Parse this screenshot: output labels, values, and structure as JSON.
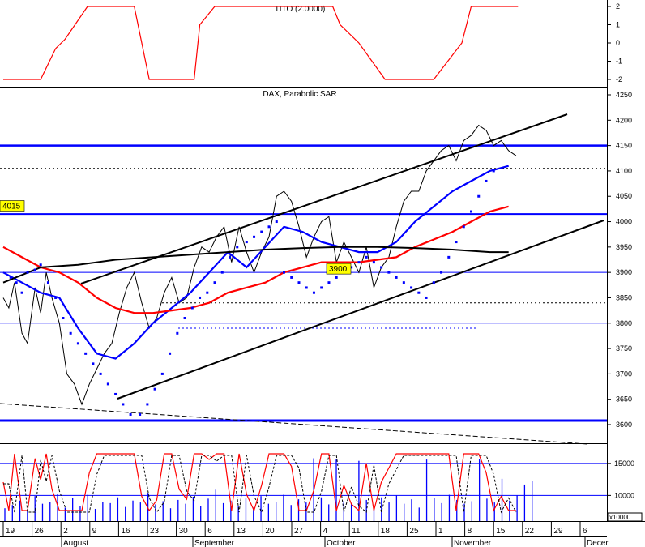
{
  "colors": {
    "background": "#ffffff",
    "frame": "#000000",
    "price": "#000000",
    "sar": "#0000ff",
    "ma_blue": "#0000ff",
    "ma_red": "#ff0000",
    "ma_long": "#000000",
    "channel": "#000000",
    "h_lines": "#0000ff",
    "tito": "#ff0000",
    "volume": "#0000ff",
    "stoch_fast": "#ff0000",
    "stoch_slow": "#000000",
    "label_bg": "#ffff00"
  },
  "chart_data": [
    {
      "type": "line",
      "panel": "indicator",
      "title": "TITO (2.0000)",
      "ylim": [
        -2.3,
        2.3
      ],
      "y_ticks": [
        "2",
        "1",
        "0",
        "-1",
        "-2"
      ],
      "series": [
        {
          "x": [
            0,
            0.8,
            2,
            2.8,
            3.3,
            4.5,
            7,
            7.8,
            10.2,
            10.5,
            11.3,
            17.6,
            18,
            19,
            20.4,
            22.1,
            23,
            24.5,
            25,
            27.5
          ],
          "values": [
            -2,
            -2,
            -2,
            -0.3,
            0.2,
            2,
            2,
            -2,
            -2,
            1,
            2,
            2,
            1,
            0,
            -2,
            -2,
            -2,
            0,
            2,
            2
          ]
        }
      ]
    },
    {
      "type": "line",
      "panel": "price",
      "title": "DAX, Parabolic SAR",
      "ylim": [
        3582,
        4255
      ],
      "y_ticks": [
        "4250",
        "4200",
        "4150",
        "4100",
        "4050",
        "4000",
        "3950",
        "3900",
        "3850",
        "3800",
        "3750",
        "3700",
        "3650",
        "3600"
      ],
      "annotations": [
        "4015",
        "3900"
      ],
      "series": [
        {
          "name": "",
          "x": [
            0,
            0.3,
            0.6,
            1,
            1.3,
            1.7,
            2,
            2.3,
            2.6,
            3,
            3.4,
            3.8,
            4.2,
            4.6,
            5,
            5.4,
            5.8,
            6.2,
            6.6,
            7,
            7.4,
            7.8,
            8.2,
            8.6,
            9,
            9.4,
            9.8,
            10.2,
            10.6,
            11,
            11.4,
            11.8,
            12.2,
            12.6,
            13,
            13.4,
            13.8,
            14.2,
            14.6,
            15,
            15.4,
            15.8,
            16.2,
            16.6,
            17,
            17.4,
            17.8,
            18.2,
            18.6,
            19,
            19.4,
            19.8,
            20.2,
            20.6,
            21,
            21.4,
            21.8,
            22.2,
            22.6,
            23,
            23.4,
            23.8,
            24.2,
            24.6,
            25,
            25.4,
            25.8,
            26.2,
            26.6,
            27,
            27.4
          ],
          "values": [
            3850,
            3830,
            3880,
            3780,
            3760,
            3870,
            3820,
            3900,
            3850,
            3800,
            3700,
            3680,
            3640,
            3680,
            3710,
            3740,
            3760,
            3820,
            3870,
            3900,
            3840,
            3790,
            3810,
            3860,
            3890,
            3840,
            3850,
            3910,
            3950,
            3940,
            3970,
            3990,
            3920,
            3990,
            3940,
            3900,
            3940,
            3970,
            4050,
            4060,
            4040,
            3990,
            3930,
            3970,
            4000,
            4010,
            3920,
            3960,
            3930,
            3900,
            3950,
            3870,
            3910,
            3930,
            3990,
            4040,
            4060,
            4060,
            4100,
            4120,
            4140,
            4150,
            4120,
            4160,
            4170,
            4190,
            4180,
            4150,
            4160,
            4140,
            4130
          ]
        },
        {
          "name": "",
          "x": [
            0,
            1,
            2,
            3,
            4,
            5,
            6,
            7,
            8,
            9,
            10,
            11,
            12,
            13,
            14,
            15,
            16,
            17,
            18,
            19,
            20,
            21,
            22,
            23,
            24,
            25,
            26,
            27
          ],
          "values": [
            3900,
            3880,
            3860,
            3850,
            3790,
            3740,
            3730,
            3760,
            3800,
            3830,
            3860,
            3900,
            3940,
            3910,
            3950,
            3990,
            3980,
            3960,
            3950,
            3940,
            3940,
            3960,
            4000,
            4030,
            4060,
            4080,
            4100,
            4110
          ]
        },
        {
          "name": "",
          "x": [
            0,
            1,
            2,
            3,
            4,
            5,
            6,
            7,
            8,
            9,
            10,
            11,
            12,
            13,
            14,
            15,
            16,
            17,
            18,
            19,
            20,
            21,
            22,
            23,
            24,
            25,
            26,
            27
          ],
          "values": [
            3950,
            3930,
            3910,
            3900,
            3880,
            3850,
            3830,
            3820,
            3820,
            3825,
            3830,
            3840,
            3860,
            3870,
            3880,
            3900,
            3910,
            3920,
            3920,
            3920,
            3925,
            3930,
            3950,
            3965,
            3980,
            4000,
            4020,
            4030
          ]
        },
        {
          "name": "",
          "x": [
            0,
            2,
            4,
            6,
            8,
            10,
            12,
            14,
            16,
            18,
            20,
            22,
            24,
            26,
            27
          ],
          "values": [
            3880,
            3910,
            3915,
            3925,
            3930,
            3935,
            3940,
            3945,
            3948,
            3950,
            3950,
            3948,
            3945,
            3940,
            3940
          ]
        },
        {
          "name": "",
          "type": "scatter",
          "x": [
            0.4,
            0.7,
            1,
            1.3,
            1.7,
            2,
            2.4,
            2.8,
            3.2,
            3.6,
            4,
            4.4,
            4.8,
            5.2,
            5.6,
            6,
            6.4,
            6.8,
            7.3,
            7.7,
            8.1,
            8.5,
            8.9,
            9.3,
            9.7,
            10.1,
            10.5,
            10.9,
            11.3,
            11.7,
            12.1,
            12.5,
            13,
            13.4,
            13.8,
            14.2,
            14.6,
            15,
            15.4,
            15.8,
            16.2,
            16.6,
            17,
            17.4,
            17.8,
            18.2,
            18.6,
            19,
            19.4,
            19.8,
            20.2,
            20.6,
            21,
            21.4,
            21.8,
            22.2,
            22.6,
            23,
            23.4,
            23.8,
            24.2,
            24.6,
            25,
            25.4,
            25.8,
            26.2
          ],
          "values": [
            3890,
            3880,
            3860,
            3900,
            3905,
            3915,
            3880,
            3850,
            3810,
            3780,
            3760,
            3740,
            3720,
            3700,
            3680,
            3660,
            3640,
            3620,
            3620,
            3640,
            3670,
            3700,
            3740,
            3780,
            3810,
            3830,
            3850,
            3860,
            3880,
            3900,
            3930,
            3950,
            3960,
            3970,
            3980,
            3990,
            4000,
            3900,
            3890,
            3880,
            3870,
            3860,
            3870,
            3880,
            3890,
            3900,
            3910,
            3920,
            3930,
            3920,
            3910,
            3900,
            3890,
            3880,
            3870,
            3860,
            3850,
            3880,
            3900,
            3930,
            3960,
            3990,
            4020,
            4050,
            4080,
            4100
          ]
        }
      ]
    },
    {
      "type": "bar",
      "panel": "volume",
      "y_ticks": [
        "15000",
        "10000"
      ],
      "unit_label": "x10000",
      "x_labels": [
        "19",
        "26",
        "2",
        "9",
        "16",
        "23",
        "30",
        "6",
        "13",
        "20",
        "27",
        "4",
        "11",
        "18",
        "25",
        "1",
        "8",
        "15",
        "22",
        "29",
        "6"
      ],
      "month_labels": [
        "August",
        "September",
        "October",
        "November",
        "Decer"
      ],
      "values": [
        8000,
        8500,
        9200,
        7800,
        9900,
        8700,
        9000,
        10200,
        8100,
        9600,
        8400,
        10100,
        7900,
        9000,
        8800,
        9700,
        8200,
        9200,
        8900,
        10400,
        8600,
        9100,
        8000,
        9300,
        8700,
        9800,
        8300,
        9500,
        10900,
        8800,
        9200,
        8400,
        9600,
        8100,
        9900,
        8700,
        9000,
        10100,
        8500,
        9400,
        8900,
        15800,
        9700,
        8600,
        15600,
        9100,
        8800,
        15400,
        9300,
        8200,
        9700,
        8900,
        10000,
        8700,
        9400,
        8100,
        15600,
        9600,
        8800,
        10100,
        9300,
        8700,
        9100,
        15700,
        9500,
        8900,
        12600,
        9200,
        10000,
        11700,
        12200
      ]
    }
  ]
}
